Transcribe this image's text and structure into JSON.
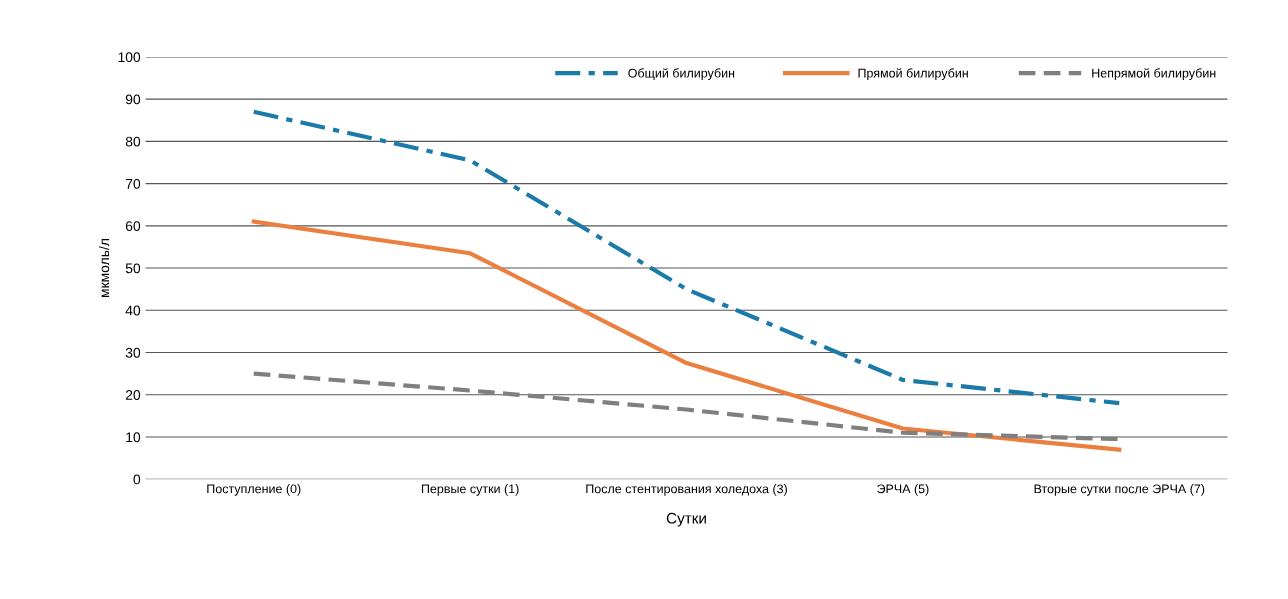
{
  "chart_data": {
    "type": "line",
    "xlabel": "Сутки",
    "ylabel": "мкмоль/л",
    "categories": [
      "Поступление (0)",
      "Первые сутки (1)",
      "После стентирования холедоха (3)",
      "ЭРЧА (5)",
      "Вторые сутки после ЭРЧА (7)"
    ],
    "series": [
      {
        "name": "Общий билирубин",
        "color": "#1a7aa8",
        "line_style": "dashdot",
        "values": [
          87,
          75.5,
          45,
          23.5,
          18
        ]
      },
      {
        "name": "Прямой билирубин",
        "color": "#eb7f3f",
        "line_style": "solid",
        "values": [
          61,
          53.5,
          27.5,
          12,
          7
        ]
      },
      {
        "name": "Непрямой билирубин",
        "color": "#7f7f7f",
        "line_style": "dashed",
        "values": [
          25,
          21,
          16.5,
          11,
          9.5
        ]
      }
    ],
    "ylim": [
      0,
      100
    ],
    "yticks": [
      0,
      10,
      20,
      30,
      40,
      50,
      60,
      70,
      80,
      90,
      100
    ],
    "grid": "y",
    "legend": "top right"
  }
}
